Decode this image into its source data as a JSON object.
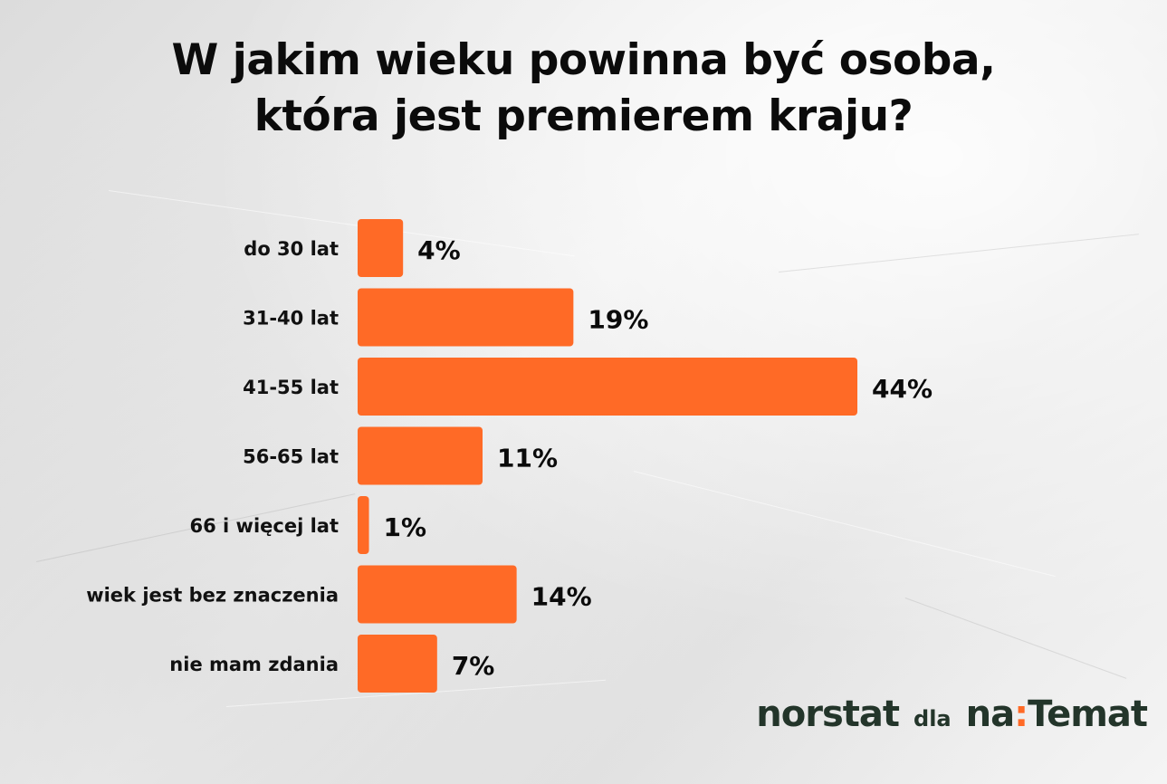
{
  "title_lines": [
    "W jakim wieku powinna być osoba,",
    "która jest premierem kraju?"
  ],
  "chart_data": {
    "type": "bar",
    "orientation": "horizontal",
    "categories": [
      "do 30 lat",
      "31-40 lat",
      "41-55 lat",
      "56-65 lat",
      "66 i więcej lat",
      "wiek jest bez znaczenia",
      "nie mam zdania"
    ],
    "values": [
      4,
      19,
      44,
      11,
      1,
      14,
      7
    ],
    "value_labels": [
      "4%",
      "19%",
      "44%",
      "11%",
      "1%",
      "14%",
      "7%"
    ],
    "unit": "%",
    "bar_color": "#ff6a26",
    "title": "W jakim wieku powinna być osoba, która jest premierem kraju?",
    "xlabel": "",
    "ylabel": "",
    "grid": false
  },
  "footer": {
    "source": "norstat",
    "connector": "dla",
    "brand_prefix": "na",
    "brand_colon": ":",
    "brand_suffix": "Temat"
  },
  "colors": {
    "accent": "#ff6a26",
    "text": "#0b0b0b",
    "logo": "#23352a"
  }
}
